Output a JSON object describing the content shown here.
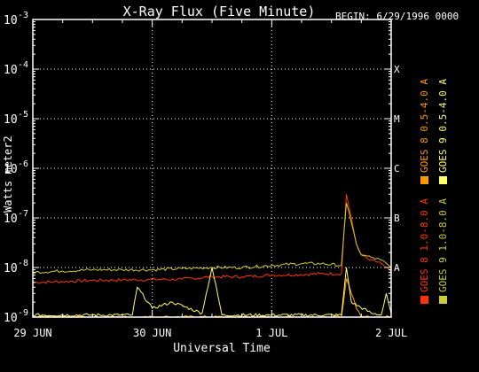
{
  "chart_data": {
    "type": "line",
    "title": "X-Ray Flux (Five Minute)",
    "begin_label": "BEGIN: 6/29/1996 0000",
    "xlabel": "Universal Time",
    "ylabel": "Watts meter2",
    "y_scale": "log",
    "ylim": [
      1e-09,
      0.001
    ],
    "xlim": [
      "1996-06-29 00:00",
      "1996-07-02 00:00"
    ],
    "x_ticks": [
      {
        "label": "29 JUN",
        "value": "1996-06-29 00:00"
      },
      {
        "label": "30 JUN",
        "value": "1996-06-30 00:00"
      },
      {
        "label": "1 JUL",
        "value": "1996-07-01 00:00"
      },
      {
        "label": "2 JUL",
        "value": "1996-07-02 00:00"
      }
    ],
    "y_ticks": [
      {
        "base": "10",
        "exp": "-9",
        "value": 1e-09
      },
      {
        "base": "10",
        "exp": "-8",
        "value": 1e-08
      },
      {
        "base": "10",
        "exp": "-7",
        "value": 1e-07
      },
      {
        "base": "10",
        "exp": "-6",
        "value": 1e-06
      },
      {
        "base": "10",
        "exp": "-5",
        "value": 1e-05
      },
      {
        "base": "10",
        "exp": "-4",
        "value": 0.0001
      },
      {
        "base": "10",
        "exp": "-3",
        "value": 0.001
      }
    ],
    "flare_classes": [
      {
        "label": "A",
        "value": 1e-08
      },
      {
        "label": "B",
        "value": 1e-07
      },
      {
        "label": "C",
        "value": 1e-06
      },
      {
        "label": "M",
        "value": 1e-05
      },
      {
        "label": "X",
        "value": 0.0001
      }
    ],
    "grid": "dotted, at 1e-8 to 1e-4 and at day boundaries",
    "legend_placement": "right, vertical",
    "series": [
      {
        "name": "GOES 8 1.0-8.0 A",
        "color": "#ff3300",
        "x": [
          "1996-06-29 00:00",
          "1996-06-29 06:00",
          "1996-06-29 12:00",
          "1996-06-29 18:00",
          "1996-06-30 00:00",
          "1996-06-30 06:00",
          "1996-06-30 12:00",
          "1996-06-30 18:00",
          "1996-07-01 00:00",
          "1996-07-01 06:00",
          "1996-07-01 10:00",
          "1996-07-01 14:00",
          "1996-07-01 15:00",
          "1996-07-01 16:00",
          "1996-07-01 17:00",
          "1996-07-01 18:00",
          "1996-07-01 20:00",
          "1996-07-01 22:00",
          "1996-07-02 00:00"
        ],
        "y": [
          5e-09,
          5.2e-09,
          5.5e-09,
          5.6e-09,
          5.7e-09,
          5.8e-09,
          6.5e-09,
          6.5e-09,
          7e-09,
          7.2e-09,
          7.5e-09,
          7.5e-09,
          3e-07,
          1e-07,
          3e-08,
          1.8e-08,
          1.4e-08,
          1.2e-08,
          8e-09
        ]
      },
      {
        "name": "GOES 8 0.5-4.0 A",
        "color": "#ff9900",
        "x": [
          "1996-06-29 00:00",
          "1996-06-29 12:00",
          "1996-06-30 00:00",
          "1996-06-30 12:00",
          "1996-07-01 00:00",
          "1996-07-01 14:00",
          "1996-07-01 15:00",
          "1996-07-01 16:00",
          "1996-07-01 17:00",
          "1996-07-01 18:00",
          "1996-07-01 20:00",
          "1996-07-01 22:00",
          "1996-07-02 00:00"
        ],
        "y": [
          1e-09,
          1e-09,
          1e-09,
          1e-09,
          1e-09,
          1e-09,
          6e-09,
          3e-09,
          1.5e-09,
          1e-09,
          1e-09,
          1e-09,
          1e-09
        ]
      },
      {
        "name": "GOES 9 1.0-8.0 A",
        "color": "#cccc33",
        "x": [
          "1996-06-29 00:00",
          "1996-06-29 06:00",
          "1996-06-29 12:00",
          "1996-06-29 18:00",
          "1996-06-30 00:00",
          "1996-06-30 06:00",
          "1996-06-30 12:00",
          "1996-06-30 18:00",
          "1996-07-01 00:00",
          "1996-07-01 06:00",
          "1996-07-01 10:00",
          "1996-07-01 14:00",
          "1996-07-01 15:00",
          "1996-07-01 16:00",
          "1996-07-01 17:00",
          "1996-07-01 18:00",
          "1996-07-01 20:00",
          "1996-07-01 22:00",
          "1996-07-02 00:00"
        ],
        "y": [
          8e-09,
          8.5e-09,
          9e-09,
          9e-09,
          9e-09,
          9.5e-09,
          1e-08,
          1e-08,
          1.1e-08,
          1.2e-08,
          1.2e-08,
          1.1e-08,
          2e-07,
          8e-08,
          3e-08,
          1.8e-08,
          1.6e-08,
          1.4e-08,
          1e-08
        ]
      },
      {
        "name": "GOES 9 0.5-4.0 A",
        "color": "#ffff66",
        "x": [
          "1996-06-29 00:00",
          "1996-06-29 12:00",
          "1996-06-29 20:00",
          "1996-06-29 21:00",
          "1996-06-30 00:00",
          "1996-06-30 04:00",
          "1996-06-30 10:00",
          "1996-06-30 12:00",
          "1996-06-30 14:00",
          "1996-07-01 00:00",
          "1996-07-01 14:00",
          "1996-07-01 15:00",
          "1996-07-01 16:00",
          "1996-07-01 20:00",
          "1996-07-01 22:00",
          "1996-07-01 23:00",
          "1996-07-02 00:00"
        ],
        "y": [
          1.1e-09,
          1.1e-09,
          1.1e-09,
          4e-09,
          1.5e-09,
          2e-09,
          1.2e-09,
          1e-08,
          1.1e-09,
          1.1e-09,
          1.1e-09,
          1e-08,
          2e-09,
          1.2e-09,
          1.1e-09,
          3e-09,
          1.2e-09
        ]
      }
    ]
  }
}
